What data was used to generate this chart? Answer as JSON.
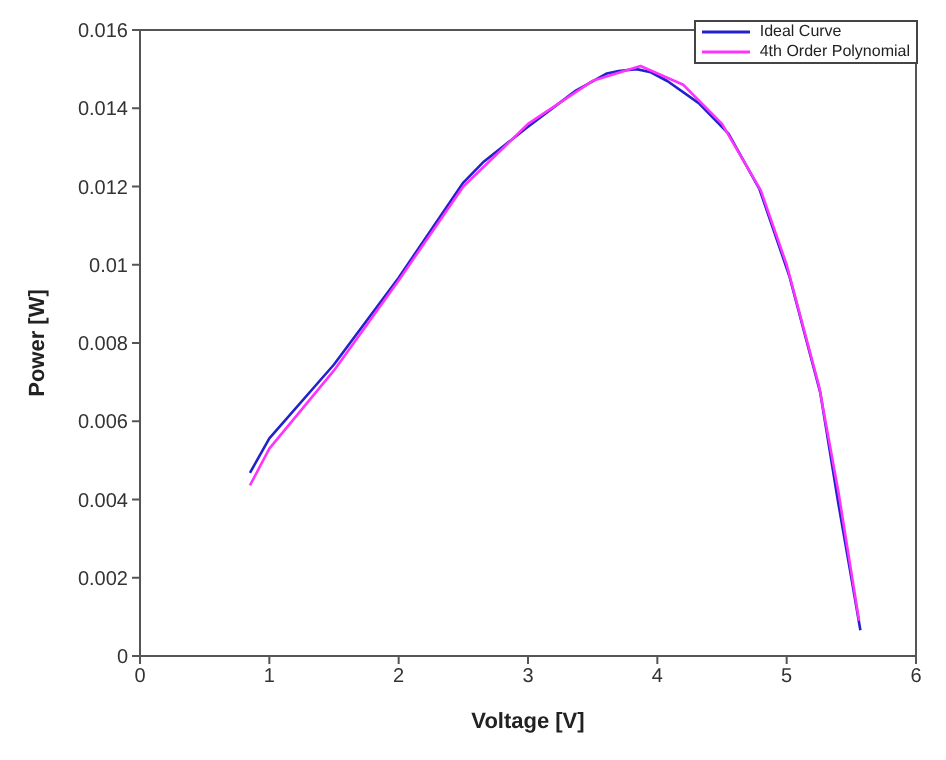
{
  "chart_data": {
    "type": "line",
    "xlabel": "Voltage [V]",
    "ylabel": "Power [W]",
    "xlim": [
      0,
      6
    ],
    "xticks": [
      0,
      1,
      2,
      3,
      4,
      5,
      6
    ],
    "ylim": [
      0,
      0.016
    ],
    "yticks": [
      0,
      0.002,
      0.004,
      0.006,
      0.008,
      0.01,
      0.012,
      0.014,
      0.016
    ],
    "grid": false,
    "legend": "top right",
    "marker": "none",
    "line_style": "solid",
    "series": [
      {
        "name": "Ideal Curve",
        "color": "#2222cc",
        "x": [
          0.85,
          1,
          1.5,
          2,
          2.5,
          2.66,
          2.99,
          3.37,
          3.61,
          3.7,
          3.84,
          3.95,
          4.08,
          4.32,
          4.55,
          4.79,
          5.02,
          5.26,
          5.4,
          5.5,
          5.57
        ],
        "values": [
          0.00468,
          0.00556,
          0.00745,
          0.00967,
          0.0121,
          0.01264,
          0.0135,
          0.01445,
          0.01489,
          0.01495,
          0.015,
          0.01492,
          0.01469,
          0.01413,
          0.01335,
          0.01193,
          0.00972,
          0.00673,
          0.00389,
          0.002,
          0.00066
        ]
      },
      {
        "name": "4th Order Polynomial",
        "color": "#ff33ff",
        "x": [
          0.85,
          1,
          1.5,
          2,
          2.5,
          3,
          3.5,
          3.87,
          4.2,
          4.5,
          4.8,
          5,
          5.25,
          5.4,
          5.56
        ],
        "values": [
          0.00436,
          0.0053,
          0.0073,
          0.0096,
          0.012,
          0.0136,
          0.0147,
          0.01508,
          0.0146,
          0.0136,
          0.0119,
          0.01,
          0.0069,
          0.0042,
          0.0009
        ]
      }
    ]
  }
}
